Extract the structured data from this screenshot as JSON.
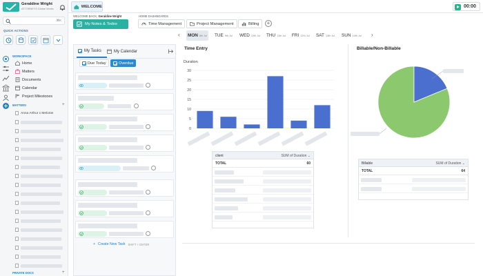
{
  "user": {
    "name": "Geraldine Wright",
    "org": "ATTORNEYS Global Works",
    "avatar_letter": "G"
  },
  "search": {
    "shortcut": "⌘K"
  },
  "quick_actions": {
    "label": "QUICK ACTIONS"
  },
  "workspace": {
    "label": "WORKSPACE",
    "items": [
      {
        "label": "Home",
        "icon": "home-icon"
      },
      {
        "label": "Matters",
        "icon": "briefcase-icon"
      },
      {
        "label": "Documents",
        "icon": "document-icon"
      },
      {
        "label": "Calendar",
        "icon": "calendar-icon"
      },
      {
        "label": "Project Milestones",
        "icon": "milestone-icon"
      }
    ]
  },
  "matters": {
    "label": "MATTERS",
    "first_item": "Anna Arthur x Melonie"
  },
  "private_docs": {
    "label": "PRIVATE DOCS"
  },
  "tabbar": {
    "welcome": "WELCOME",
    "timer": "00:00"
  },
  "header": {
    "welcome_prefix": "WELCOME BACK,",
    "welcome_name": "Geraldine Wright",
    "notes_button": "My Notes & Todos",
    "home_dashboards": "HOME DASHBOARDS",
    "dash_tabs": [
      "Time Management",
      "Project Management",
      "Billing"
    ]
  },
  "days": [
    {
      "name": "MON",
      "date": "8th Jul",
      "active": true
    },
    {
      "name": "TUE",
      "date": "9th Jul"
    },
    {
      "name": "WED",
      "date": "10th Jul"
    },
    {
      "name": "THU",
      "date": "11th Jul"
    },
    {
      "name": "FRI",
      "date": "12th Jul"
    },
    {
      "name": "SAT",
      "date": "13th Jul"
    },
    {
      "name": "SUN",
      "date": "14th Jul"
    }
  ],
  "tasks": {
    "tab_my_tasks": "My Tasks",
    "tab_my_calendar": "My Calendar",
    "filter_due_today": "Due Today",
    "filter_overdue": "Overdue",
    "create_label": "Create New Task",
    "create_shortcut": "SHIFT + ENTER"
  },
  "time_entry": {
    "title": "Time Entry",
    "table_header_client": "client",
    "table_header_sum": "SUM of Duration",
    "total_label": "TOTAL",
    "total_value": "60"
  },
  "billable": {
    "title": "Billable/Non-Billable",
    "table_header_billable": "Billable",
    "table_header_sum": "SUM of Duration",
    "total_label": "TOTAL",
    "total_value": "64"
  },
  "colors": {
    "accent": "#2680c2",
    "teal": "#2bb0a1",
    "bar": "#4a6fcf",
    "pie_green": "#8cc96e",
    "pie_blue": "#4a6fcf"
  },
  "chart_data": [
    {
      "type": "bar",
      "title": "Time Entry",
      "ylabel": "Duration",
      "ylim": [
        0,
        30
      ],
      "yticks": [
        0,
        5,
        10,
        15,
        20,
        25,
        30
      ],
      "values": [
        9,
        6,
        2,
        27,
        4,
        12
      ],
      "grid": true
    },
    {
      "type": "pie",
      "title": "Billable/Non-Billable",
      "values": [
        52,
        12
      ],
      "colors": [
        "#8cc96e",
        "#4a6fcf"
      ]
    }
  ]
}
